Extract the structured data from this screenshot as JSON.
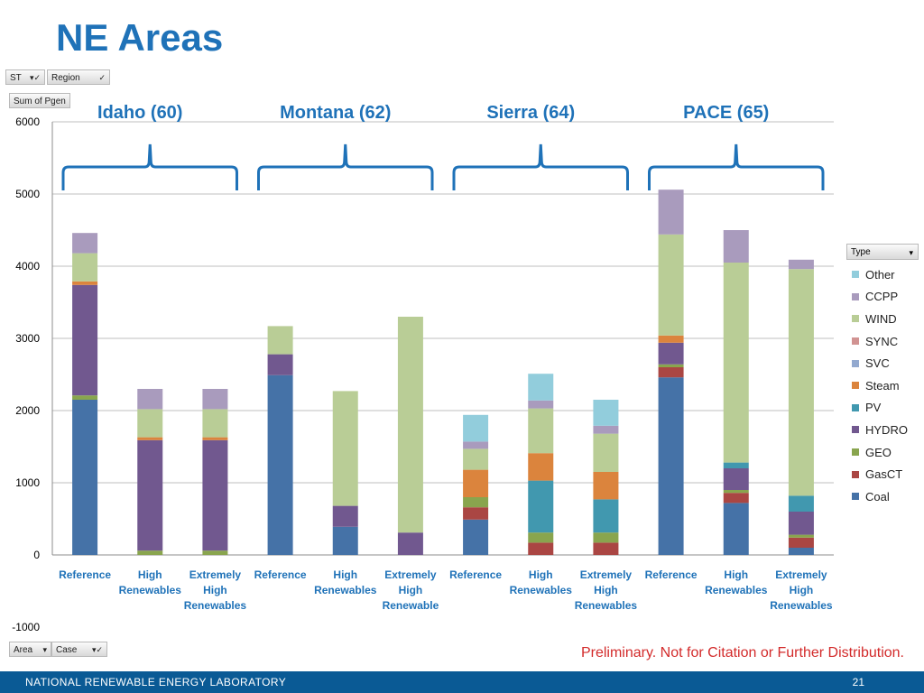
{
  "slide": {
    "title": "NE Areas",
    "disclaimer": "Preliminary.  Not for Citation or Further Distribution.",
    "org": "NATIONAL RENEWABLE ENERGY LABORATORY",
    "page_number": "21"
  },
  "pivot": {
    "filters": [
      {
        "label": "ST",
        "icon": "filter-dropdown-icon"
      },
      {
        "label": "Region",
        "icon": "filter-dropdown-icon"
      }
    ],
    "value_field": "Sum of Pgen",
    "axis_fields": [
      {
        "label": "Area",
        "icon": "dropdown-icon"
      },
      {
        "label": "Case",
        "icon": "filter-dropdown-icon"
      }
    ],
    "legend_field": "Type"
  },
  "chart_data": {
    "type": "bar",
    "stacked": true,
    "ylim": [
      -1000,
      6000
    ],
    "yticks": [
      "-1000",
      "0",
      "1000",
      "2000",
      "3000",
      "4000",
      "5000",
      "6000"
    ],
    "grid": true,
    "legend_position": "right",
    "groups": [
      "Idaho (60)",
      "Montana (62)",
      "Sierra (64)",
      "PACE (65)"
    ],
    "categories": [
      "Reference",
      "High Renewables",
      "Extremely High Renewables",
      "Reference",
      "High Renewables",
      "Extremely High Renewables",
      "Reference",
      "High Renewables",
      "Extremely High Renewables",
      "Reference",
      "High Renewables",
      "Extremely High Renewables"
    ],
    "category_lines": [
      [
        "Reference"
      ],
      [
        "High",
        "Renewables"
      ],
      [
        "Extremely",
        "High",
        "Renewables"
      ],
      [
        "Reference"
      ],
      [
        "High",
        "Renewables"
      ],
      [
        "Extremely",
        "High",
        "Renewable"
      ],
      [
        "Reference"
      ],
      [
        "High",
        "Renewables"
      ],
      [
        "Extremely",
        "High",
        "Renewables"
      ],
      [
        "Reference"
      ],
      [
        "High",
        "Renewables"
      ],
      [
        "Extremely",
        "High",
        "Renewables"
      ]
    ],
    "series": [
      {
        "name": "Coal",
        "color": "#4572a7",
        "values": [
          2150,
          0,
          0,
          2490,
          390,
          0,
          490,
          0,
          0,
          2460,
          720,
          100
        ]
      },
      {
        "name": "GasCT",
        "color": "#aa4643",
        "values": [
          0,
          0,
          0,
          0,
          0,
          0,
          170,
          170,
          170,
          140,
          140,
          140
        ]
      },
      {
        "name": "GEO",
        "color": "#89a54e",
        "values": [
          60,
          60,
          60,
          0,
          0,
          0,
          140,
          140,
          140,
          40,
          40,
          40
        ]
      },
      {
        "name": "HYDRO",
        "color": "#71588f",
        "values": [
          1530,
          1530,
          1530,
          290,
          290,
          310,
          0,
          0,
          0,
          300,
          300,
          320
        ]
      },
      {
        "name": "PV",
        "color": "#4198af",
        "values": [
          0,
          0,
          0,
          0,
          0,
          0,
          0,
          720,
          460,
          0,
          80,
          220
        ]
      },
      {
        "name": "Steam",
        "color": "#db843d",
        "values": [
          50,
          40,
          40,
          0,
          0,
          0,
          380,
          380,
          380,
          100,
          0,
          0
        ]
      },
      {
        "name": "SVC",
        "color": "#93a9cf",
        "values": [
          0,
          0,
          0,
          0,
          0,
          0,
          0,
          0,
          0,
          0,
          0,
          0
        ]
      },
      {
        "name": "SYNC",
        "color": "#d19392",
        "values": [
          0,
          0,
          0,
          0,
          0,
          0,
          0,
          0,
          0,
          0,
          0,
          0
        ]
      },
      {
        "name": "WIND",
        "color": "#b9cd96",
        "values": [
          390,
          390,
          390,
          390,
          1590,
          2990,
          290,
          620,
          530,
          1400,
          2770,
          3140
        ]
      },
      {
        "name": "CCPP",
        "color": "#a99bbd",
        "values": [
          280,
          280,
          280,
          0,
          0,
          0,
          100,
          110,
          110,
          620,
          450,
          130
        ]
      },
      {
        "name": "Other",
        "color": "#92cddc",
        "values": [
          0,
          0,
          0,
          0,
          0,
          0,
          370,
          370,
          360,
          0,
          0,
          0
        ]
      }
    ]
  }
}
